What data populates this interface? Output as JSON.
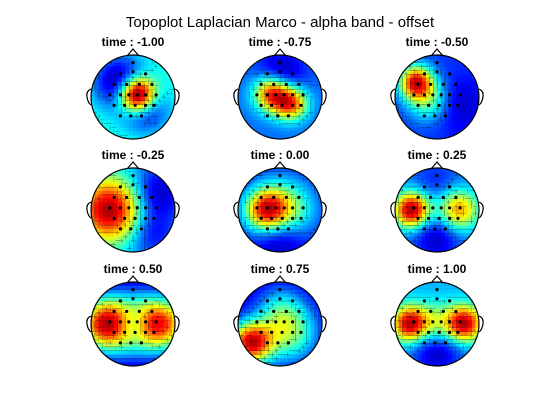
{
  "figure": {
    "title": "Topoplot Laplacian Marco - alpha band - offset"
  },
  "chart_data": {
    "type": "heatmap",
    "title": "Topoplot Laplacian Marco - alpha band - offset",
    "subplots": [
      {
        "label": "time : -1.00",
        "time": -1.0,
        "blobs": [
          [
            0.1,
            0.05,
            0.9,
            0.3
          ],
          [
            -0.3,
            0.35,
            -0.4,
            0.45
          ],
          [
            0.3,
            -0.3,
            -0.3,
            0.4
          ]
        ],
        "base": -0.75
      },
      {
        "label": "time : -0.75",
        "time": -0.75,
        "blobs": [
          [
            -0.2,
            0.1,
            0.8,
            0.3
          ],
          [
            0.25,
            -0.15,
            0.7,
            0.28
          ],
          [
            0.0,
            0.5,
            -0.3,
            0.4
          ]
        ],
        "base": -0.65
      },
      {
        "label": "time : -0.50",
        "time": -0.5,
        "blobs": [
          [
            -0.5,
            0.35,
            1.2,
            0.28
          ],
          [
            -0.2,
            -0.1,
            0.5,
            0.35
          ],
          [
            0.5,
            -0.2,
            -0.2,
            0.45
          ]
        ],
        "base": -0.6
      },
      {
        "label": "time : -0.25",
        "time": -0.25,
        "blobs": [
          [
            -0.55,
            0.0,
            1.1,
            0.55
          ],
          [
            0.55,
            0.4,
            -0.4,
            0.45
          ],
          [
            0.4,
            -0.55,
            -0.3,
            0.4
          ]
        ],
        "base": -0.45
      },
      {
        "label": "time : 0.00",
        "time": 0.0,
        "blobs": [
          [
            -0.35,
            0.0,
            0.8,
            0.35
          ],
          [
            0.1,
            0.0,
            0.6,
            0.5
          ],
          [
            0.0,
            -0.6,
            -0.3,
            0.4
          ]
        ],
        "base": -0.55
      },
      {
        "label": "time : 0.25",
        "time": 0.25,
        "blobs": [
          [
            -0.6,
            0.0,
            1.5,
            0.3
          ],
          [
            0.5,
            0.0,
            1.0,
            0.35
          ],
          [
            0.0,
            -0.6,
            -0.4,
            0.4
          ],
          [
            0.0,
            0.6,
            -0.2,
            0.4
          ]
        ],
        "base": -0.4
      },
      {
        "label": "time : 0.50",
        "time": 0.5,
        "blobs": [
          [
            -0.7,
            0.0,
            1.1,
            0.45
          ],
          [
            0.7,
            0.0,
            1.0,
            0.45
          ],
          [
            0.0,
            0.0,
            0.55,
            0.6
          ],
          [
            0.0,
            0.0,
            -0.3,
            0.25
          ]
        ],
        "base": -0.1
      },
      {
        "label": "time : 0.75",
        "time": 0.75,
        "blobs": [
          [
            -0.7,
            -0.45,
            1.3,
            0.35
          ],
          [
            0.2,
            -0.2,
            0.7,
            0.5
          ],
          [
            0.0,
            0.4,
            0.3,
            0.4
          ]
        ],
        "base": -0.35
      },
      {
        "label": "time : 1.00",
        "time": 1.0,
        "blobs": [
          [
            -0.65,
            0.0,
            1.0,
            0.3
          ],
          [
            0.65,
            0.0,
            1.0,
            0.3
          ],
          [
            0.0,
            0.0,
            0.4,
            0.35
          ],
          [
            0.0,
            -0.6,
            -0.4,
            0.45
          ]
        ],
        "base": -0.45
      }
    ],
    "colormap": "jet",
    "electrodes": [
      [
        -0.3,
        0.55
      ],
      [
        0.0,
        0.6
      ],
      [
        0.3,
        0.55
      ],
      [
        -0.45,
        0.3
      ],
      [
        -0.15,
        0.3
      ],
      [
        0.15,
        0.3
      ],
      [
        0.45,
        0.3
      ],
      [
        -0.55,
        0.05
      ],
      [
        -0.3,
        0.05
      ],
      [
        -0.1,
        0.05
      ],
      [
        0.1,
        0.05
      ],
      [
        0.3,
        0.05
      ],
      [
        0.55,
        0.05
      ],
      [
        -0.45,
        -0.2
      ],
      [
        -0.2,
        -0.2
      ],
      [
        0.05,
        -0.2
      ],
      [
        0.3,
        -0.2
      ],
      [
        0.5,
        -0.2
      ],
      [
        -0.3,
        -0.45
      ],
      [
        -0.05,
        -0.45
      ],
      [
        0.2,
        -0.45
      ],
      [
        0.0,
        0.82
      ]
    ]
  }
}
